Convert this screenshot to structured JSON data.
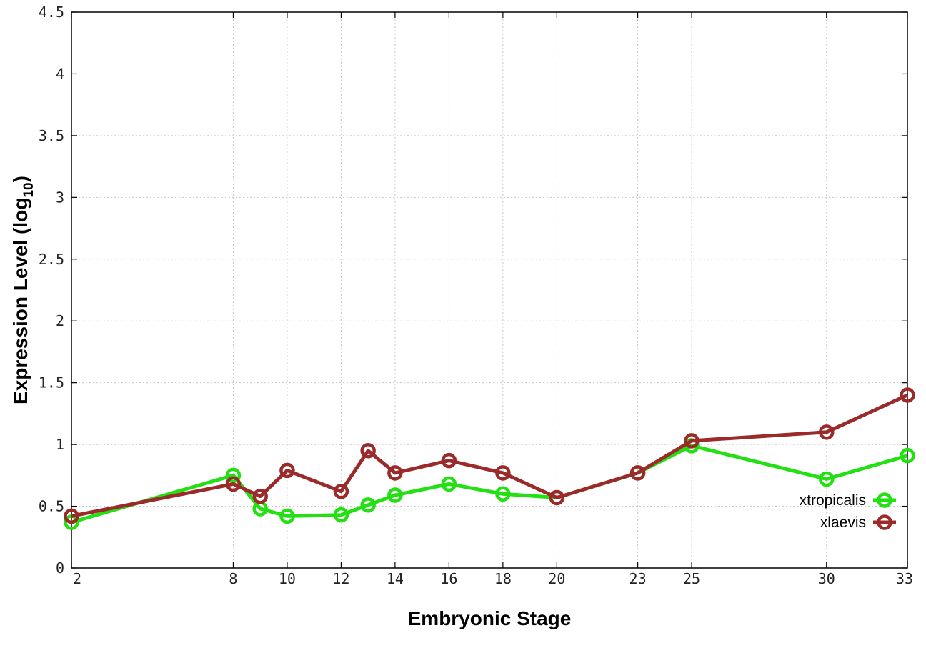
{
  "chart_data": {
    "type": "line",
    "title": "",
    "xlabel": "Embryonic Stage",
    "ylabel": {
      "main": "Expression Level (log",
      "sub": "10",
      "end": ")"
    },
    "x": [
      2,
      8,
      9,
      10,
      12,
      13,
      14,
      16,
      18,
      20,
      23,
      25,
      30,
      33
    ],
    "xticks": [
      "2",
      "8",
      "10",
      "12",
      "14",
      "16",
      "18",
      "20",
      "23",
      "25",
      "30",
      "33"
    ],
    "xtick_values": [
      2,
      8,
      10,
      12,
      14,
      16,
      18,
      20,
      23,
      25,
      30,
      33
    ],
    "yticks": [
      "0",
      "0.5",
      "1",
      "1.5",
      "2",
      "2.5",
      "3",
      "3.5",
      "4",
      "4.5"
    ],
    "ytick_values": [
      0,
      0.5,
      1,
      1.5,
      2,
      2.5,
      3,
      3.5,
      4,
      4.5
    ],
    "xlim": [
      2,
      33
    ],
    "ylim": [
      0,
      4.5
    ],
    "grid": true,
    "legend_position": "bottom-right",
    "series": [
      {
        "name": "xtropicalis",
        "color": "#22e011",
        "values": [
          0.37,
          0.75,
          0.48,
          0.42,
          0.43,
          0.51,
          0.59,
          0.68,
          0.6,
          0.57,
          0.77,
          0.99,
          0.72,
          0.91
        ]
      },
      {
        "name": "xlaevis",
        "color": "#9b2a2a",
        "values": [
          0.42,
          0.68,
          0.58,
          0.79,
          0.62,
          0.95,
          0.77,
          0.87,
          0.77,
          0.57,
          0.77,
          1.03,
          1.1,
          1.4
        ]
      }
    ]
  }
}
